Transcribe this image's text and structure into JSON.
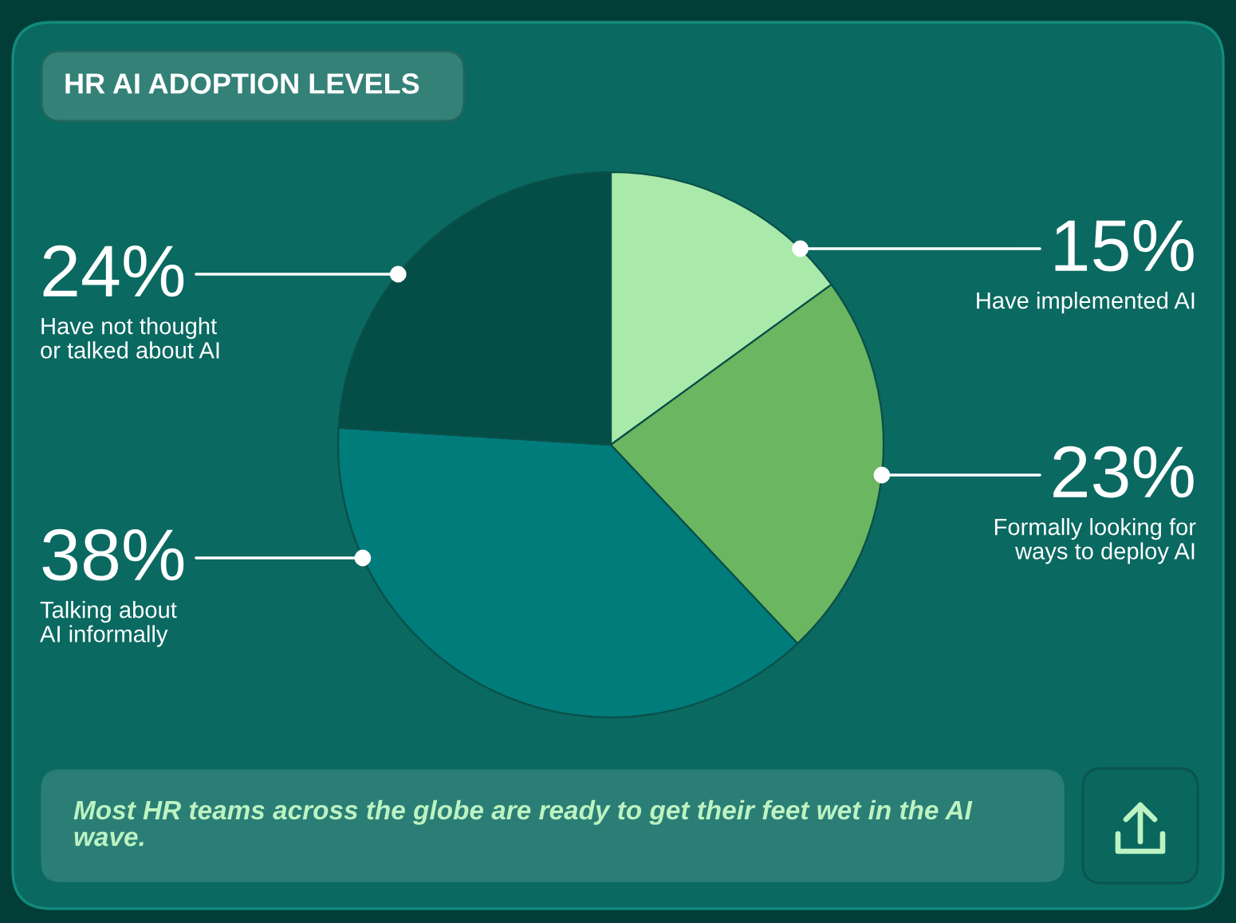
{
  "chart_data": {
    "type": "pie",
    "title": "HR AI ADOPTION LEVELS",
    "categories": [
      "Have implemented AI",
      "Formally looking for\nways to deploy AI",
      "Talking about\nAI informally",
      "Have not thought\nor talked about AI"
    ],
    "values": [
      15,
      23,
      38,
      24
    ],
    "value_labels": [
      "15%",
      "23%",
      "38%",
      "24%"
    ],
    "colors": [
      "#a9e9aa",
      "#6bb660",
      "#007c7b",
      "#054e48"
    ],
    "annotations": [
      "Most HR teams across the globe are ready to get their feet wet in the AI\nwave."
    ]
  }
}
